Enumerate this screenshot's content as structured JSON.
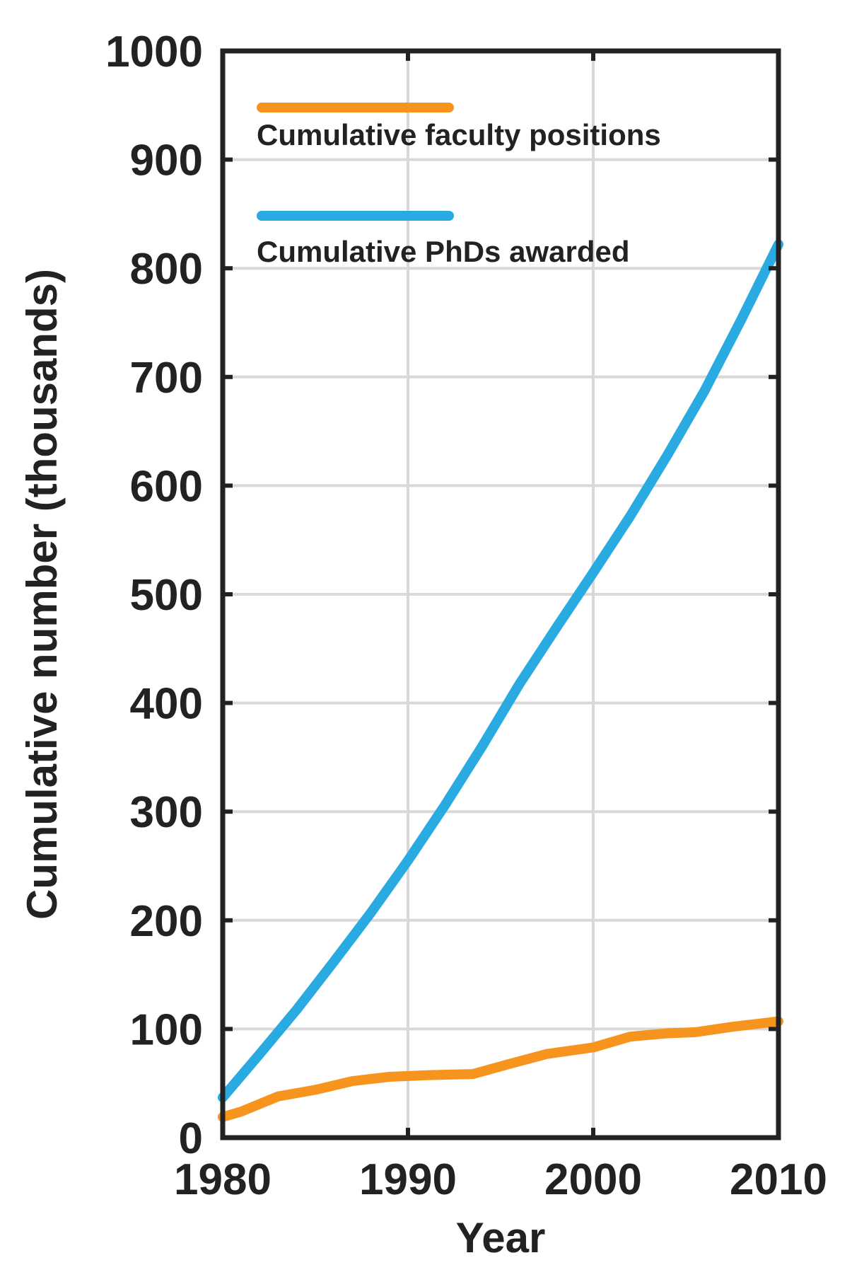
{
  "chart_data": {
    "type": "line",
    "title": "",
    "xlabel": "Year",
    "ylabel": "Cumulative number (thousands)",
    "xlim": [
      1980,
      2010
    ],
    "ylim": [
      0,
      1000
    ],
    "xticks": [
      1980,
      1990,
      2000,
      2010
    ],
    "yticks": [
      0,
      100,
      200,
      300,
      400,
      500,
      600,
      700,
      800,
      900,
      1000
    ],
    "grid": true,
    "legend_placement": "top-left",
    "series": [
      {
        "name": "Cumulative faculty positions",
        "color": "#f7941d",
        "x": [
          1980,
          1981,
          1983,
          1985,
          1987,
          1989,
          1991,
          1993.5,
          1995.5,
          1997.5,
          2000,
          2002,
          2004,
          2005.5,
          2007.5,
          2009,
          2010
        ],
        "y": [
          19,
          24,
          38,
          44,
          52,
          56,
          57.5,
          58.5,
          68,
          77,
          83,
          93,
          96,
          97,
          102,
          105,
          107
        ]
      },
      {
        "name": "Cumulative PhDs awarded",
        "color": "#29abe2",
        "x": [
          1980,
          1982,
          1984,
          1986,
          1988,
          1990,
          1992,
          1994,
          1996,
          1998,
          2000,
          2002,
          2004,
          2006,
          2008,
          2010
        ],
        "y": [
          37,
          77,
          118,
          162,
          207,
          255,
          306,
          360,
          417,
          469,
          520,
          572,
          628,
          687,
          753,
          822
        ]
      }
    ]
  }
}
